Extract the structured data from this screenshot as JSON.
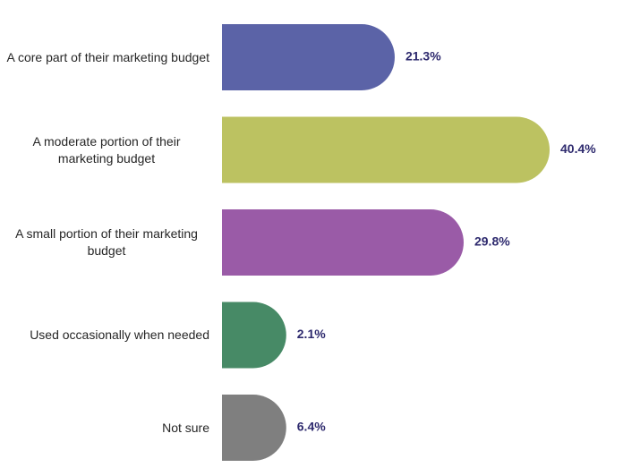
{
  "chart_data": {
    "type": "bar",
    "orientation": "horizontal",
    "categories": [
      "A core part of their marketing budget",
      "A moderate portion of their marketing budget",
      "A small portion of their marketing budget",
      "Used occasionally when needed",
      "Not sure"
    ],
    "values": [
      21.3,
      40.4,
      29.8,
      2.1,
      6.4
    ],
    "value_labels": [
      "21.3%",
      "40.4%",
      "29.8%",
      "2.1%",
      "6.4%"
    ],
    "colors": [
      "#5b63a7",
      "#bcc261",
      "#9a5ba7",
      "#478a66",
      "#7f7f7f"
    ]
  }
}
